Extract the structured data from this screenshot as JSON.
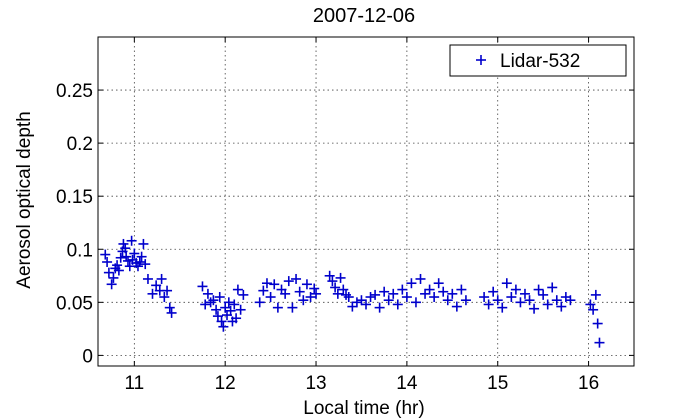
{
  "chart_data": {
    "type": "scatter",
    "title": "2007-12-06",
    "xlabel": "Local time (hr)",
    "ylabel": "Aerosol optical depth",
    "xlim": [
      10.6,
      16.5
    ],
    "ylim": [
      -0.01,
      0.3
    ],
    "xticks": [
      11,
      12,
      13,
      14,
      15,
      16
    ],
    "xtick_labels": [
      "11",
      "12",
      "13",
      "14",
      "15",
      "16"
    ],
    "yticks": [
      0,
      0.05,
      0.1,
      0.15,
      0.2,
      0.25
    ],
    "ytick_labels": [
      "0",
      "0.05",
      "0.1",
      "0.15",
      "0.2",
      "0.25"
    ],
    "grid": true,
    "legend_position": "top-right",
    "series": [
      {
        "name": "Lidar-532",
        "color": "#0000cc",
        "marker": "+",
        "x": [
          10.68,
          10.7,
          10.72,
          10.75,
          10.77,
          10.79,
          10.81,
          10.83,
          10.85,
          10.87,
          10.88,
          10.9,
          10.91,
          10.93,
          10.95,
          10.97,
          10.98,
          11.0,
          11.02,
          11.04,
          11.06,
          11.08,
          11.1,
          11.12,
          11.15,
          11.2,
          11.24,
          11.28,
          11.3,
          11.33,
          11.36,
          11.39,
          11.41,
          11.75,
          11.78,
          11.81,
          11.84,
          11.87,
          11.9,
          11.92,
          11.94,
          11.96,
          11.98,
          12.0,
          12.02,
          12.04,
          12.06,
          12.08,
          12.1,
          12.12,
          12.14,
          12.17,
          12.2,
          12.38,
          12.42,
          12.46,
          12.5,
          12.54,
          12.58,
          12.62,
          12.66,
          12.7,
          12.74,
          12.78,
          12.82,
          12.86,
          12.9,
          12.94,
          12.98,
          13.0,
          13.15,
          13.18,
          13.21,
          13.24,
          13.27,
          13.3,
          13.33,
          13.36,
          13.4,
          13.45,
          13.5,
          13.55,
          13.6,
          13.65,
          13.7,
          13.75,
          13.8,
          13.85,
          13.9,
          13.95,
          14.0,
          14.05,
          14.1,
          14.15,
          14.2,
          14.25,
          14.3,
          14.35,
          14.4,
          14.45,
          14.5,
          14.55,
          14.6,
          14.65,
          14.85,
          14.9,
          14.95,
          15.0,
          15.05,
          15.1,
          15.15,
          15.2,
          15.25,
          15.3,
          15.35,
          15.4,
          15.45,
          15.5,
          15.55,
          15.6,
          15.65,
          15.7,
          15.75,
          15.8,
          16.02,
          16.05,
          16.08,
          16.1,
          16.12
        ],
        "y": [
          0.095,
          0.088,
          0.078,
          0.067,
          0.073,
          0.082,
          0.085,
          0.08,
          0.092,
          0.098,
          0.105,
          0.101,
          0.093,
          0.089,
          0.084,
          0.108,
          0.09,
          0.096,
          0.087,
          0.084,
          0.088,
          0.093,
          0.105,
          0.086,
          0.072,
          0.058,
          0.066,
          0.061,
          0.072,
          0.055,
          0.061,
          0.045,
          0.04,
          0.065,
          0.048,
          0.058,
          0.05,
          0.052,
          0.043,
          0.037,
          0.055,
          0.032,
          0.027,
          0.045,
          0.038,
          0.05,
          0.042,
          0.032,
          0.048,
          0.035,
          0.062,
          0.043,
          0.057,
          0.05,
          0.061,
          0.068,
          0.055,
          0.067,
          0.045,
          0.062,
          0.058,
          0.07,
          0.045,
          0.072,
          0.06,
          0.052,
          0.067,
          0.055,
          0.063,
          0.058,
          0.075,
          0.07,
          0.064,
          0.058,
          0.073,
          0.062,
          0.057,
          0.055,
          0.046,
          0.05,
          0.052,
          0.048,
          0.055,
          0.057,
          0.045,
          0.06,
          0.052,
          0.058,
          0.048,
          0.062,
          0.055,
          0.068,
          0.05,
          0.072,
          0.058,
          0.062,
          0.055,
          0.068,
          0.06,
          0.052,
          0.058,
          0.046,
          0.062,
          0.052,
          0.055,
          0.048,
          0.06,
          0.052,
          0.045,
          0.068,
          0.055,
          0.062,
          0.05,
          0.058,
          0.052,
          0.044,
          0.062,
          0.057,
          0.048,
          0.064,
          0.052,
          0.046,
          0.055,
          0.052,
          0.048,
          0.043,
          0.057,
          0.03,
          0.012
        ]
      }
    ]
  }
}
